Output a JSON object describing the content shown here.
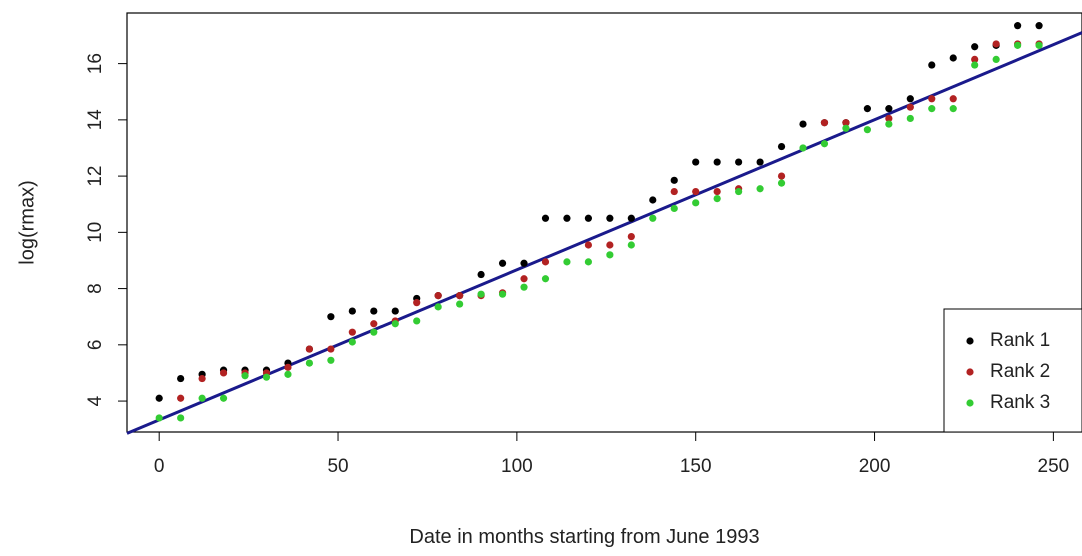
{
  "chart_data": {
    "type": "scatter",
    "xlabel": "Date in months starting from June 1993",
    "ylabel": "log(rmax)",
    "xlim": [
      -9,
      258
    ],
    "ylim": [
      2.9,
      17.8
    ],
    "xticks": [
      0,
      50,
      100,
      150,
      200,
      250
    ],
    "yticks": [
      4,
      6,
      8,
      10,
      12,
      14,
      16
    ],
    "grid": false,
    "legend_position": "bottom-right",
    "series": [
      {
        "name": "Rank 1",
        "color": "#000000",
        "x": [
          0,
          6,
          12,
          18,
          24,
          30,
          36,
          42,
          48,
          54,
          60,
          66,
          72,
          78,
          84,
          90,
          96,
          102,
          108,
          114,
          120,
          126,
          132,
          138,
          144,
          150,
          156,
          162,
          168,
          174,
          180,
          186,
          192,
          198,
          204,
          210,
          216,
          222,
          228,
          234,
          240,
          246
        ],
        "y": [
          4.1,
          4.8,
          4.95,
          5.1,
          5.1,
          5.1,
          5.35,
          5.85,
          7.0,
          7.2,
          7.2,
          7.2,
          7.65,
          7.75,
          7.75,
          8.5,
          8.9,
          8.9,
          10.5,
          10.5,
          10.5,
          10.5,
          10.5,
          11.15,
          11.85,
          12.5,
          12.5,
          12.5,
          12.5,
          13.05,
          13.85,
          13.9,
          13.9,
          14.4,
          14.4,
          14.75,
          15.95,
          16.2,
          16.6,
          16.65,
          17.35,
          17.35
        ]
      },
      {
        "name": "Rank 2",
        "color": "#b22222",
        "x": [
          6,
          12,
          18,
          24,
          30,
          36,
          42,
          48,
          54,
          60,
          66,
          72,
          78,
          84,
          90,
          96,
          102,
          108,
          120,
          126,
          132,
          144,
          150,
          156,
          162,
          174,
          186,
          192,
          204,
          210,
          216,
          222,
          228,
          234,
          240,
          246
        ],
        "y": [
          4.1,
          4.8,
          5.0,
          5.0,
          5.0,
          5.2,
          5.85,
          5.85,
          6.45,
          6.75,
          6.85,
          7.5,
          7.75,
          7.75,
          7.75,
          7.85,
          8.35,
          8.95,
          9.55,
          9.55,
          9.85,
          11.45,
          11.45,
          11.45,
          11.55,
          12.0,
          13.9,
          13.9,
          14.05,
          14.45,
          14.75,
          14.75,
          16.15,
          16.7,
          16.7,
          16.7
        ]
      },
      {
        "name": "Rank 3",
        "color": "#33cc33",
        "x": [
          0,
          6,
          12,
          18,
          24,
          30,
          36,
          42,
          48,
          54,
          60,
          66,
          72,
          78,
          84,
          90,
          96,
          102,
          108,
          114,
          120,
          126,
          132,
          138,
          144,
          150,
          156,
          162,
          168,
          174,
          180,
          186,
          192,
          198,
          204,
          210,
          216,
          222,
          228,
          234,
          240,
          246
        ],
        "y": [
          3.4,
          3.4,
          4.1,
          4.1,
          4.9,
          4.85,
          4.95,
          5.35,
          5.45,
          6.1,
          6.45,
          6.75,
          6.85,
          7.35,
          7.45,
          7.8,
          7.8,
          8.05,
          8.35,
          8.95,
          8.95,
          9.2,
          9.55,
          10.5,
          10.85,
          11.05,
          11.2,
          11.45,
          11.55,
          11.75,
          13.0,
          13.15,
          13.7,
          13.65,
          13.85,
          14.05,
          14.4,
          14.4,
          15.95,
          16.15,
          16.65,
          16.65
        ]
      }
    ],
    "fit_line": {
      "color": "#1a1a8c",
      "x": [
        -9,
        258
      ],
      "y": [
        2.85,
        17.1
      ]
    }
  }
}
